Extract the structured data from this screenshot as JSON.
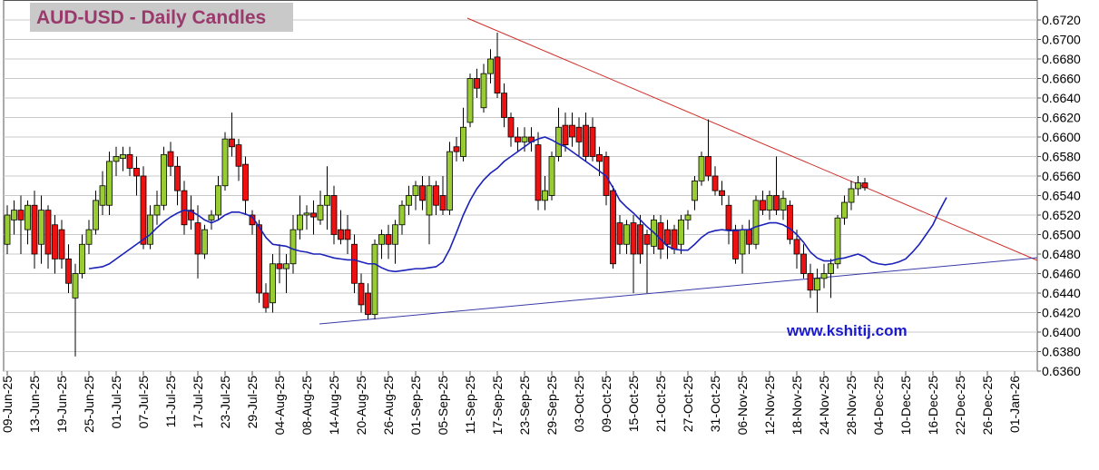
{
  "chart_data": {
    "type": "candlestick",
    "title": "AUD-USD - Daily Candles",
    "watermark": "www.kshitij.com",
    "up_color": "#99cc33",
    "down_color": "#ee1111",
    "grid": true,
    "ylim": [
      0.636,
      0.674
    ],
    "yticks": [
      {
        "value": 0.636,
        "label": "0.6360"
      },
      {
        "value": 0.638,
        "label": "0.6380"
      },
      {
        "value": 0.64,
        "label": "0.6400"
      },
      {
        "value": 0.642,
        "label": "0.6420"
      },
      {
        "value": 0.644,
        "label": "0.6440"
      },
      {
        "value": 0.646,
        "label": "0.6460"
      },
      {
        "value": 0.648,
        "label": "0.6480"
      },
      {
        "value": 0.65,
        "label": "0.6500"
      },
      {
        "value": 0.652,
        "label": "0.6520"
      },
      {
        "value": 0.654,
        "label": "0.6540"
      },
      {
        "value": 0.656,
        "label": "0.6560"
      },
      {
        "value": 0.658,
        "label": "0.6580"
      },
      {
        "value": 0.66,
        "label": "0.6600"
      },
      {
        "value": 0.662,
        "label": "0.6620"
      },
      {
        "value": 0.664,
        "label": "0.6640"
      },
      {
        "value": 0.666,
        "label": "0.6660"
      },
      {
        "value": 0.668,
        "label": "0.6680"
      },
      {
        "value": 0.67,
        "label": "0.6700"
      },
      {
        "value": 0.672,
        "label": "0.6720"
      }
    ],
    "categories": [
      "09-Jun-25",
      null,
      null,
      null,
      "13-Jun-25",
      null,
      null,
      null,
      "19-Jun-25",
      null,
      null,
      null,
      "25-Jun-25",
      null,
      null,
      null,
      "01-Jul-25",
      null,
      null,
      null,
      "07-Jul-25",
      null,
      null,
      null,
      "11-Jul-25",
      null,
      null,
      null,
      "17-Jul-25",
      null,
      null,
      null,
      "23-Jul-25",
      null,
      null,
      null,
      "29-Jul-25",
      null,
      null,
      null,
      "04-Aug-25",
      null,
      null,
      null,
      "08-Aug-25",
      null,
      null,
      null,
      "14-Aug-25",
      null,
      null,
      null,
      "20-Aug-25",
      null,
      null,
      null,
      "26-Aug-25",
      null,
      null,
      null,
      "01-Sep-25",
      null,
      null,
      null,
      "05-Sep-25",
      null,
      null,
      null,
      "11-Sep-25",
      null,
      null,
      null,
      "17-Sep-25",
      null,
      null,
      null,
      "23-Sep-25",
      null,
      null,
      null,
      "29-Sep-25",
      null,
      null,
      null,
      "03-Oct-25",
      null,
      null,
      null,
      "09-Oct-25",
      null,
      null,
      null,
      "15-Oct-25",
      null,
      null,
      null,
      "21-Oct-25",
      null,
      null,
      null,
      "27-Oct-25",
      null,
      null,
      null,
      "31-Oct-25",
      null,
      null,
      null,
      "06-Nov-25",
      null,
      null,
      null,
      "12-Nov-25",
      null,
      null,
      null,
      "18-Nov-25",
      null,
      null,
      null,
      "24-Nov-25",
      null,
      null,
      null,
      "28-Nov-25",
      null,
      null,
      null,
      "04-Dec-25",
      null,
      null,
      null,
      "10-Dec-25",
      null,
      null,
      null,
      "16-Dec-25",
      null,
      null,
      null,
      "22-Dec-25",
      null,
      null,
      null,
      "26-Dec-25",
      null,
      null,
      null,
      "01-Jan-26",
      null,
      null,
      null
    ],
    "candles": [
      [
        0.649,
        0.653,
        0.648,
        0.652
      ],
      [
        0.6515,
        0.6535,
        0.65,
        0.6525
      ],
      [
        0.6525,
        0.654,
        0.648,
        0.6515
      ],
      [
        0.6505,
        0.6535,
        0.649,
        0.653
      ],
      [
        0.653,
        0.6545,
        0.6465,
        0.648
      ],
      [
        0.649,
        0.654,
        0.647,
        0.6525
      ],
      [
        0.6525,
        0.653,
        0.6465,
        0.648
      ],
      [
        0.651,
        0.652,
        0.646,
        0.6475
      ],
      [
        0.6505,
        0.6515,
        0.6465,
        0.6475
      ],
      [
        0.6475,
        0.649,
        0.644,
        0.645
      ],
      [
        0.6435,
        0.647,
        0.6375,
        0.646
      ],
      [
        0.646,
        0.65,
        0.6455,
        0.649
      ],
      [
        0.649,
        0.6515,
        0.648,
        0.6505
      ],
      [
        0.6505,
        0.6545,
        0.65,
        0.6535
      ],
      [
        0.653,
        0.6565,
        0.652,
        0.655
      ],
      [
        0.653,
        0.6585,
        0.652,
        0.6575
      ],
      [
        0.6575,
        0.659,
        0.656,
        0.658
      ],
      [
        0.6578,
        0.659,
        0.6565,
        0.6582
      ],
      [
        0.6582,
        0.659,
        0.656,
        0.6568
      ],
      [
        0.6568,
        0.658,
        0.654,
        0.656
      ],
      [
        0.656,
        0.657,
        0.6485,
        0.649
      ],
      [
        0.649,
        0.653,
        0.6485,
        0.652
      ],
      [
        0.652,
        0.6545,
        0.651,
        0.653
      ],
      [
        0.653,
        0.659,
        0.6525,
        0.6582
      ],
      [
        0.6585,
        0.6595,
        0.656,
        0.657
      ],
      [
        0.657,
        0.658,
        0.653,
        0.6545
      ],
      [
        0.6545,
        0.6555,
        0.65,
        0.651
      ],
      [
        0.6525,
        0.654,
        0.6505,
        0.6515
      ],
      [
        0.6512,
        0.653,
        0.6455,
        0.648
      ],
      [
        0.648,
        0.651,
        0.6475,
        0.6505
      ],
      [
        0.6515,
        0.6525,
        0.6505,
        0.652
      ],
      [
        0.652,
        0.656,
        0.6515,
        0.655
      ],
      [
        0.655,
        0.6605,
        0.6545,
        0.6598
      ],
      [
        0.6598,
        0.6625,
        0.658,
        0.659
      ],
      [
        0.6592,
        0.6598,
        0.6555,
        0.657
      ],
      [
        0.6572,
        0.658,
        0.652,
        0.6535
      ],
      [
        0.652,
        0.6525,
        0.65,
        0.651
      ],
      [
        0.651,
        0.6515,
        0.643,
        0.644
      ],
      [
        0.644,
        0.645,
        0.642,
        0.6425
      ],
      [
        0.643,
        0.648,
        0.642,
        0.647
      ],
      [
        0.647,
        0.649,
        0.645,
        0.6465
      ],
      [
        0.6465,
        0.648,
        0.644,
        0.647
      ],
      [
        0.647,
        0.652,
        0.646,
        0.6505
      ],
      [
        0.6505,
        0.654,
        0.6495,
        0.652
      ],
      [
        0.652,
        0.653,
        0.6505,
        0.6522
      ],
      [
        0.6522,
        0.6535,
        0.65,
        0.6518
      ],
      [
        0.6515,
        0.6545,
        0.651,
        0.653
      ],
      [
        0.653,
        0.657,
        0.6505,
        0.654
      ],
      [
        0.654,
        0.655,
        0.649,
        0.65
      ],
      [
        0.6505,
        0.6525,
        0.649,
        0.6495
      ],
      [
        0.6505,
        0.652,
        0.648,
        0.6495
      ],
      [
        0.649,
        0.65,
        0.644,
        0.645
      ],
      [
        0.645,
        0.646,
        0.642,
        0.6428
      ],
      [
        0.644,
        0.645,
        0.6413,
        0.6418
      ],
      [
        0.6418,
        0.6495,
        0.6413,
        0.649
      ],
      [
        0.649,
        0.6505,
        0.6475,
        0.65
      ],
      [
        0.65,
        0.651,
        0.6475,
        0.649
      ],
      [
        0.649,
        0.6515,
        0.647,
        0.651
      ],
      [
        0.651,
        0.6535,
        0.65,
        0.653
      ],
      [
        0.653,
        0.655,
        0.652,
        0.654
      ],
      [
        0.654,
        0.6555,
        0.6525,
        0.655
      ],
      [
        0.655,
        0.656,
        0.6525,
        0.6535
      ],
      [
        0.652,
        0.656,
        0.649,
        0.655
      ],
      [
        0.655,
        0.6555,
        0.652,
        0.653
      ],
      [
        0.654,
        0.656,
        0.652,
        0.6525
      ],
      [
        0.6525,
        0.6595,
        0.652,
        0.6585
      ],
      [
        0.659,
        0.66,
        0.6575,
        0.6585
      ],
      [
        0.658,
        0.663,
        0.6575,
        0.661
      ],
      [
        0.6615,
        0.6665,
        0.661,
        0.666
      ],
      [
        0.666,
        0.667,
        0.664,
        0.665
      ],
      [
        0.663,
        0.6675,
        0.6625,
        0.6665
      ],
      [
        0.6665,
        0.669,
        0.6655,
        0.668
      ],
      [
        0.6682,
        0.6707,
        0.664,
        0.6645
      ],
      [
        0.6645,
        0.6655,
        0.661,
        0.662
      ],
      [
        0.662,
        0.6625,
        0.659,
        0.66
      ],
      [
        0.66,
        0.661,
        0.6585,
        0.6595
      ],
      [
        0.6595,
        0.661,
        0.6585,
        0.66
      ],
      [
        0.66,
        0.661,
        0.6585,
        0.6595
      ],
      [
        0.6592,
        0.6605,
        0.6525,
        0.6535
      ],
      [
        0.6535,
        0.656,
        0.6525,
        0.6545
      ],
      [
        0.654,
        0.6585,
        0.6535,
        0.658
      ],
      [
        0.658,
        0.663,
        0.6575,
        0.661
      ],
      [
        0.6612,
        0.6625,
        0.6585,
        0.6592
      ],
      [
        0.6612,
        0.6625,
        0.659,
        0.66
      ],
      [
        0.661,
        0.662,
        0.658,
        0.6595
      ],
      [
        0.6612,
        0.6625,
        0.6575,
        0.658
      ],
      [
        0.661,
        0.662,
        0.6575,
        0.658
      ],
      [
        0.6582,
        0.659,
        0.656,
        0.6575
      ],
      [
        0.658,
        0.6585,
        0.653,
        0.654
      ],
      [
        0.6545,
        0.655,
        0.6465,
        0.647
      ],
      [
        0.6512,
        0.652,
        0.648,
        0.649
      ],
      [
        0.649,
        0.6515,
        0.648,
        0.651
      ],
      [
        0.6512,
        0.652,
        0.644,
        0.648
      ],
      [
        0.651,
        0.652,
        0.647,
        0.648
      ],
      [
        0.65,
        0.6505,
        0.644,
        0.649
      ],
      [
        0.6488,
        0.652,
        0.648,
        0.6515
      ],
      [
        0.6512,
        0.652,
        0.6475,
        0.6485
      ],
      [
        0.6505,
        0.6515,
        0.6475,
        0.649
      ],
      [
        0.6505,
        0.651,
        0.648,
        0.6485
      ],
      [
        0.649,
        0.652,
        0.648,
        0.6515
      ],
      [
        0.6515,
        0.6525,
        0.6505,
        0.652
      ],
      [
        0.6535,
        0.656,
        0.6525,
        0.6555
      ],
      [
        0.6555,
        0.6585,
        0.655,
        0.658
      ],
      [
        0.658,
        0.6618,
        0.6555,
        0.656
      ],
      [
        0.656,
        0.657,
        0.654,
        0.6545
      ],
      [
        0.6545,
        0.6555,
        0.653,
        0.654
      ],
      [
        0.653,
        0.654,
        0.649,
        0.6505
      ],
      [
        0.6505,
        0.651,
        0.647,
        0.6475
      ],
      [
        0.648,
        0.651,
        0.646,
        0.6505
      ],
      [
        0.6505,
        0.6515,
        0.648,
        0.649
      ],
      [
        0.649,
        0.654,
        0.6485,
        0.6535
      ],
      [
        0.6535,
        0.6545,
        0.652,
        0.6525
      ],
      [
        0.6525,
        0.6545,
        0.6515,
        0.654
      ],
      [
        0.654,
        0.658,
        0.652,
        0.6525
      ],
      [
        0.6525,
        0.6545,
        0.6515,
        0.6537
      ],
      [
        0.653,
        0.6535,
        0.649,
        0.6495
      ],
      [
        0.6495,
        0.6505,
        0.6465,
        0.648
      ],
      [
        0.648,
        0.649,
        0.6455,
        0.646
      ],
      [
        0.646,
        0.647,
        0.6435,
        0.6443
      ],
      [
        0.6443,
        0.6465,
        0.642,
        0.6455
      ],
      [
        0.6455,
        0.647,
        0.6445,
        0.646
      ],
      [
        0.646,
        0.6475,
        0.6435,
        0.647
      ],
      [
        0.647,
        0.652,
        0.6465,
        0.6517
      ],
      [
        0.6517,
        0.654,
        0.651,
        0.6533
      ],
      [
        0.6533,
        0.6555,
        0.6525,
        0.6547
      ],
      [
        0.6547,
        0.656,
        0.654,
        0.6553
      ],
      [
        0.6553,
        0.6558,
        0.6545,
        0.6548
      ],
      null,
      null,
      null,
      null,
      null,
      null,
      null,
      null,
      null,
      null,
      null,
      null,
      null,
      null,
      null,
      null,
      null,
      null,
      null,
      null,
      null,
      null,
      null,
      null,
      null
    ],
    "moving_average": {
      "color": "#1a22b8",
      "values": [
        null,
        null,
        null,
        null,
        null,
        null,
        null,
        null,
        null,
        null,
        null,
        null,
        0.6465,
        0.6466,
        0.6467,
        0.647,
        0.6475,
        0.648,
        0.6485,
        0.649,
        0.6495,
        0.65,
        0.6507,
        0.6513,
        0.6518,
        0.6522,
        0.6525,
        0.6524,
        0.652,
        0.6515,
        0.6512,
        0.6515,
        0.652,
        0.6523,
        0.6523,
        0.6521,
        0.6518,
        0.6508,
        0.6497,
        0.649,
        0.6489,
        0.6488,
        0.6485,
        0.6483,
        0.6482,
        0.648,
        0.648,
        0.6478,
        0.6476,
        0.6475,
        0.6474,
        0.6474,
        0.6472,
        0.647,
        0.647,
        0.6466,
        0.6463,
        0.6462,
        0.6463,
        0.6464,
        0.6465,
        0.6465,
        0.6466,
        0.6467,
        0.6472,
        0.6485,
        0.6502,
        0.652,
        0.6535,
        0.6547,
        0.6556,
        0.6563,
        0.6568,
        0.6575,
        0.658,
        0.6585,
        0.659,
        0.6595,
        0.6598,
        0.66,
        0.6597,
        0.6593,
        0.659,
        0.6585,
        0.658,
        0.6575,
        0.657,
        0.6565,
        0.656,
        0.6548,
        0.6535,
        0.6528,
        0.6522,
        0.6515,
        0.6508,
        0.6502,
        0.6495,
        0.6488,
        0.6485,
        0.6484,
        0.6484,
        0.649,
        0.6497,
        0.6502,
        0.6504,
        0.6505,
        0.6504,
        0.6504,
        0.6505,
        0.6505,
        0.6508,
        0.651,
        0.6512,
        0.6512,
        0.651,
        0.6506,
        0.65,
        0.6492,
        0.6482,
        0.6476,
        0.6473,
        0.6473,
        0.6475,
        0.6476,
        0.6478,
        0.648,
        0.6477,
        0.6472,
        0.647,
        0.6469,
        0.647,
        0.6472,
        0.6475,
        0.6482,
        0.649,
        0.65,
        0.651,
        0.6525,
        0.6538,
        null,
        null,
        null,
        null,
        null,
        null,
        null,
        null,
        null,
        null,
        null,
        null,
        null
      ]
    }
  }
}
